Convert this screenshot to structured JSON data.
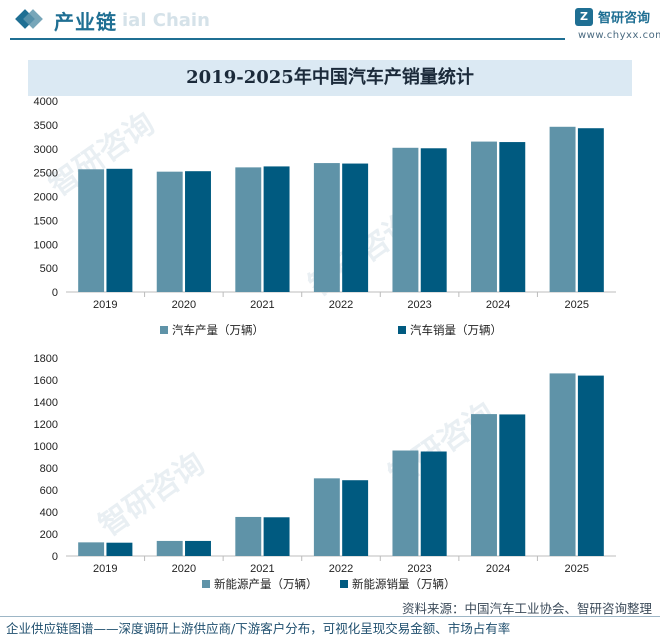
{
  "header": {
    "title": "产业链",
    "ghost_text": "ial Chain",
    "logo_name": "智研咨询",
    "logo_url": "www.chyxx.com"
  },
  "watermark": "智研咨询",
  "colors": {
    "production": "#5f93a8",
    "sales": "#005a80",
    "accent": "#1f6f93",
    "title_band": "#dbe9f3"
  },
  "chart_title": "2019-2025年中国汽车产销量统计",
  "chart_data": [
    {
      "type": "bar",
      "categories": [
        "2019",
        "2020",
        "2021",
        "2022",
        "2023",
        "2024",
        "2025"
      ],
      "series": [
        {
          "name": "汽车产量（万辆）",
          "values": [
            2570,
            2520,
            2610,
            2700,
            3020,
            3150,
            3460
          ]
        },
        {
          "name": "汽车销量（万辆）",
          "values": [
            2580,
            2530,
            2630,
            2690,
            3010,
            3140,
            3430
          ]
        }
      ],
      "yticks": [
        0,
        500,
        1000,
        1500,
        2000,
        2500,
        3000,
        3500,
        4000
      ],
      "ylim": [
        0,
        4000
      ],
      "legend_position": "bottom"
    },
    {
      "type": "bar",
      "categories": [
        "2019",
        "2020",
        "2021",
        "2022",
        "2023",
        "2024",
        "2025"
      ],
      "series": [
        {
          "name": "新能源产量（万辆）",
          "values": [
            124,
            137,
            355,
            706,
            959,
            1290,
            1660
          ]
        },
        {
          "name": "新能源销量（万辆）",
          "values": [
            121,
            137,
            352,
            689,
            950,
            1287,
            1640
          ]
        }
      ],
      "yticks": [
        0,
        200,
        400,
        600,
        800,
        1000,
        1200,
        1400,
        1600,
        1800
      ],
      "ylim": [
        0,
        1800
      ],
      "legend_position": "bottom"
    }
  ],
  "footer": {
    "source": "资料来源：中国汽车工业协会、智研咨询整理",
    "tagline": "企业供应链图谱——深度调研上游供应商/下游客户分布，可视化呈现交易金额、市场占有率"
  }
}
